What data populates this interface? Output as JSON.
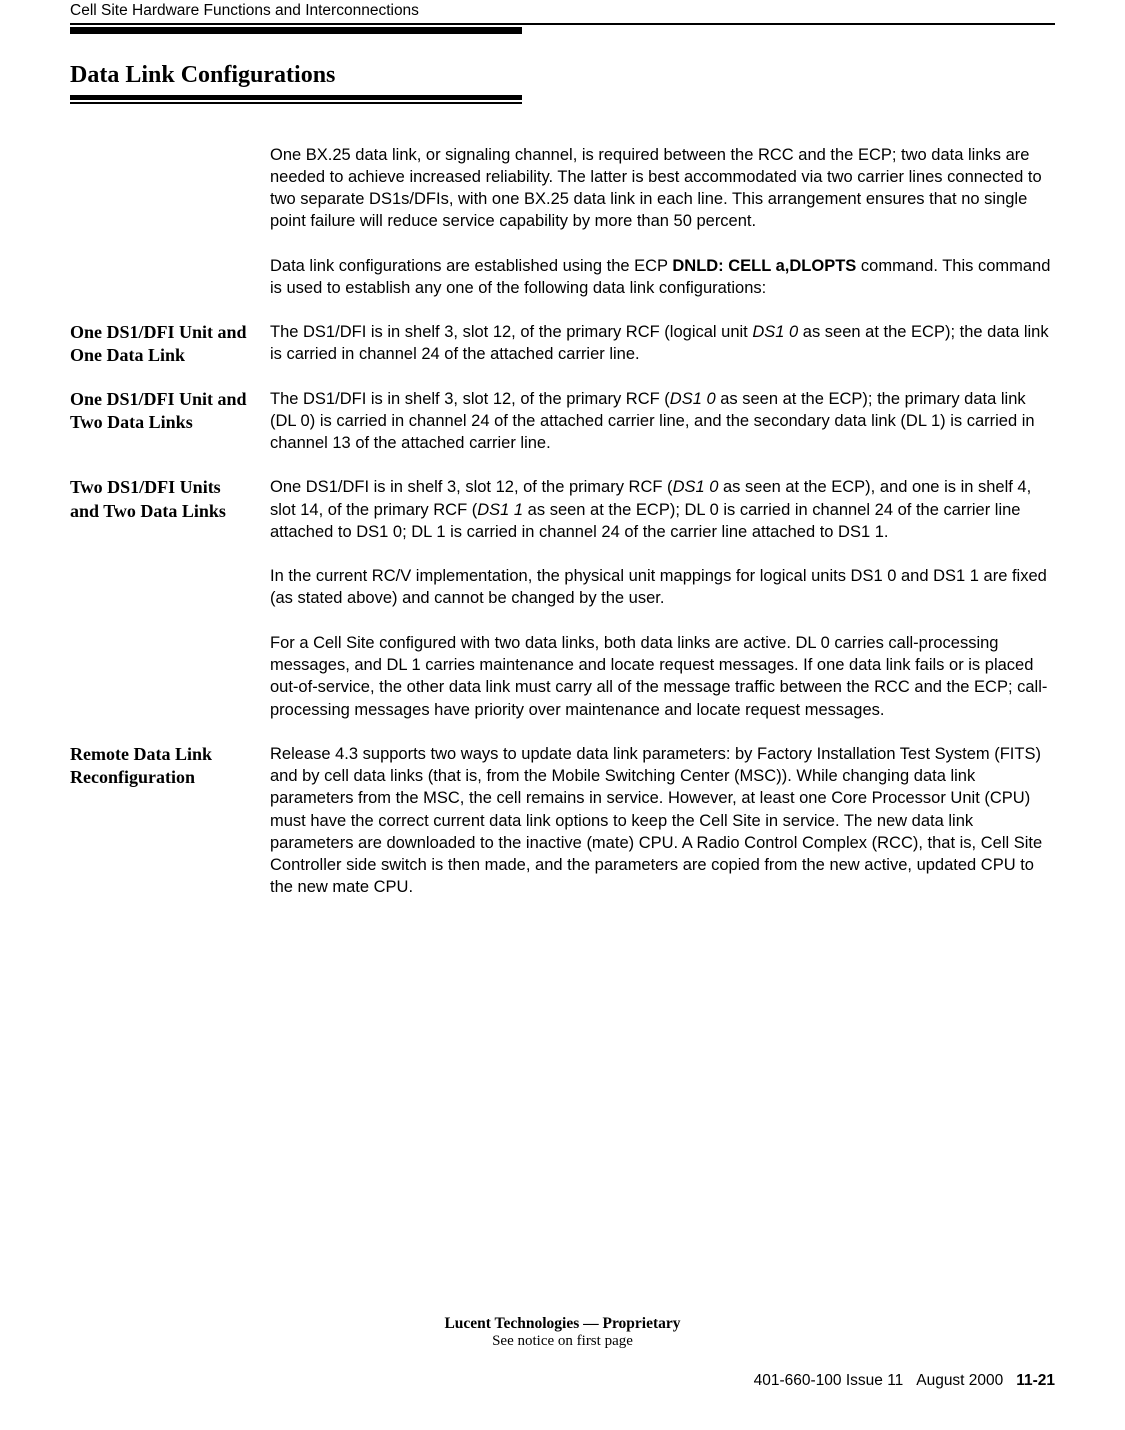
{
  "header": {
    "running": "Cell Site Hardware Functions and Interconnections"
  },
  "section": {
    "title": "Data Link Configurations"
  },
  "intro": {
    "p1": "One BX.25 data link, or signaling channel, is required between the RCC and the ECP; two data links are needed to achieve increased reliability. The latter is best accommodated via two carrier lines connected to two separate DS1s/DFIs, with one BX.25 data link in each line. This arrangement ensures that no single point failure will reduce service capability by more than 50 percent.",
    "p2_pre": "Data link configurations are established using the ECP ",
    "p2_cmd": "DNLD: CELL a,DLOPTS",
    "p2_post": " command. This command is used to establish any one of the following data link configurations:"
  },
  "blocks": {
    "b1": {
      "label": "One DS1/DFI Unit and One Data Link",
      "t_pre": "The DS1/DFI is in shelf 3, slot 12, of the primary RCF (logical unit ",
      "t_it": "DS1 0",
      "t_post": " as seen at the ECP); the data link is carried in channel 24 of the attached carrier line."
    },
    "b2": {
      "label": "One DS1/DFI Unit and Two Data Links",
      "t_pre": "The DS1/DFI is in shelf 3, slot 12, of the primary RCF (",
      "t_it": "DS1 0",
      "t_post": " as seen at the ECP); the primary data link (DL 0) is carried in channel 24 of the attached carrier line, and the secondary data link (DL 1) is carried in channel 13 of the attached carrier line."
    },
    "b3": {
      "label": "Two DS1/DFI Units and Two Data Links",
      "p1_a": "One DS1/DFI is in shelf 3, slot 12, of the primary RCF (",
      "p1_it1": "DS1 0",
      "p1_b": " as seen at the ECP), and one is in shelf 4, slot 14, of the primary RCF (",
      "p1_it2": "DS1 1",
      "p1_c": " as seen at the ECP); DL 0 is carried in channel 24 of the carrier line attached to DS1 0; DL 1 is carried in channel 24 of the carrier line attached to DS1 1.",
      "p2": "In the current RC/V implementation, the physical unit mappings for logical units DS1 0 and DS1 1 are fixed (as stated above) and cannot be changed by the user.",
      "p3": "For a Cell Site configured with two data links, both data links are active. DL 0 carries call-processing messages, and DL 1 carries maintenance and locate request messages. If one data link fails or is placed out-of-service, the other data link must carry all of the message traffic between the RCC and the ECP; call-processing messages have priority over maintenance and locate request messages."
    },
    "b4": {
      "label": "Remote Data Link Reconfiguration",
      "p1": "Release 4.3 supports two ways to update data link parameters: by Factory Installation Test System (FITS) and by cell data links (that is, from the Mobile Switching Center (MSC)). While changing data link parameters from the MSC, the cell remains in service. However, at least one Core Processor Unit (CPU) must have the correct current data link options to keep the Cell Site in service. The new data link parameters are downloaded to the inactive (mate) CPU. A Radio Control Complex (RCC), that is, Cell Site Controller side switch is then made, and the parameters are copied from the new active, updated CPU to the new mate CPU."
    }
  },
  "footer": {
    "line1": "Lucent Technologies — Proprietary",
    "line2": "See notice on first page",
    "doc": "401-660-100 Issue 11",
    "date": "August 2000",
    "page": "11-21"
  }
}
